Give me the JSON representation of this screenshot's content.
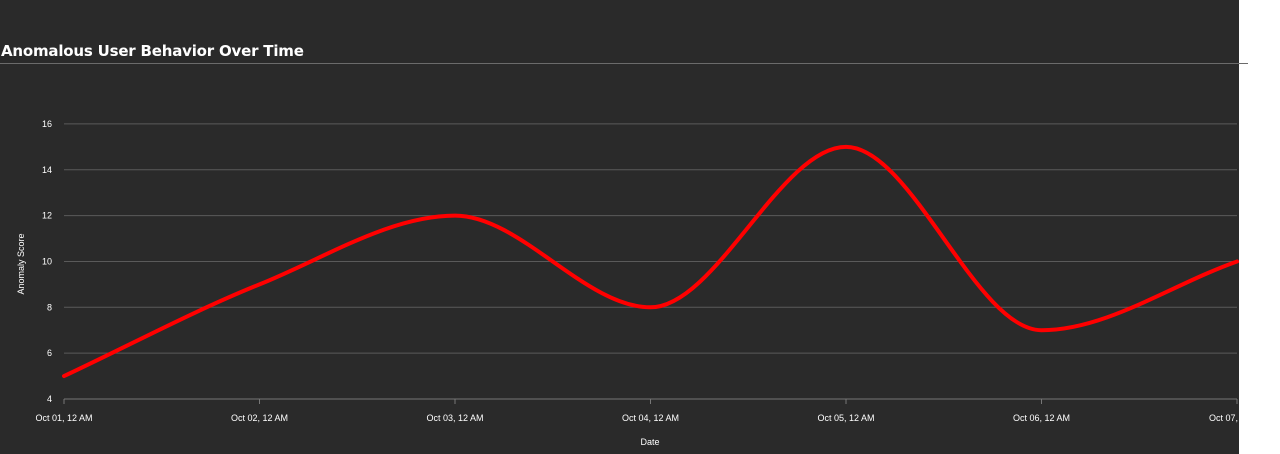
{
  "chart_data": {
    "type": "line",
    "title": "Anomalous User Behavior Over Time",
    "xlabel": "Date",
    "ylabel": "Anomaly Score",
    "x": [
      "2023-10-01",
      "2023-10-02",
      "2023-10-03",
      "2023-10-04",
      "2023-10-05",
      "2023-10-06",
      "2023-10-07"
    ],
    "x_tick_labels": [
      "Oct 01, 12 AM",
      "Oct 02, 12 AM",
      "Oct 03, 12 AM",
      "Oct 04, 12 AM",
      "Oct 05, 12 AM",
      "Oct 06, 12 AM",
      "Oct 07,"
    ],
    "series": [
      {
        "values": [
          5,
          9,
          12,
          8,
          15,
          7,
          10
        ],
        "color": "#ff0000"
      }
    ],
    "y_ticks": [
      4,
      6,
      8,
      10,
      12,
      14,
      16
    ],
    "ylim": [
      4,
      17
    ],
    "grid": true,
    "legend": "none",
    "curve": "smooth"
  },
  "colors": {
    "background": "#2a2a2a",
    "gridline": "#5a5a5a",
    "text": "#ffffff"
  }
}
